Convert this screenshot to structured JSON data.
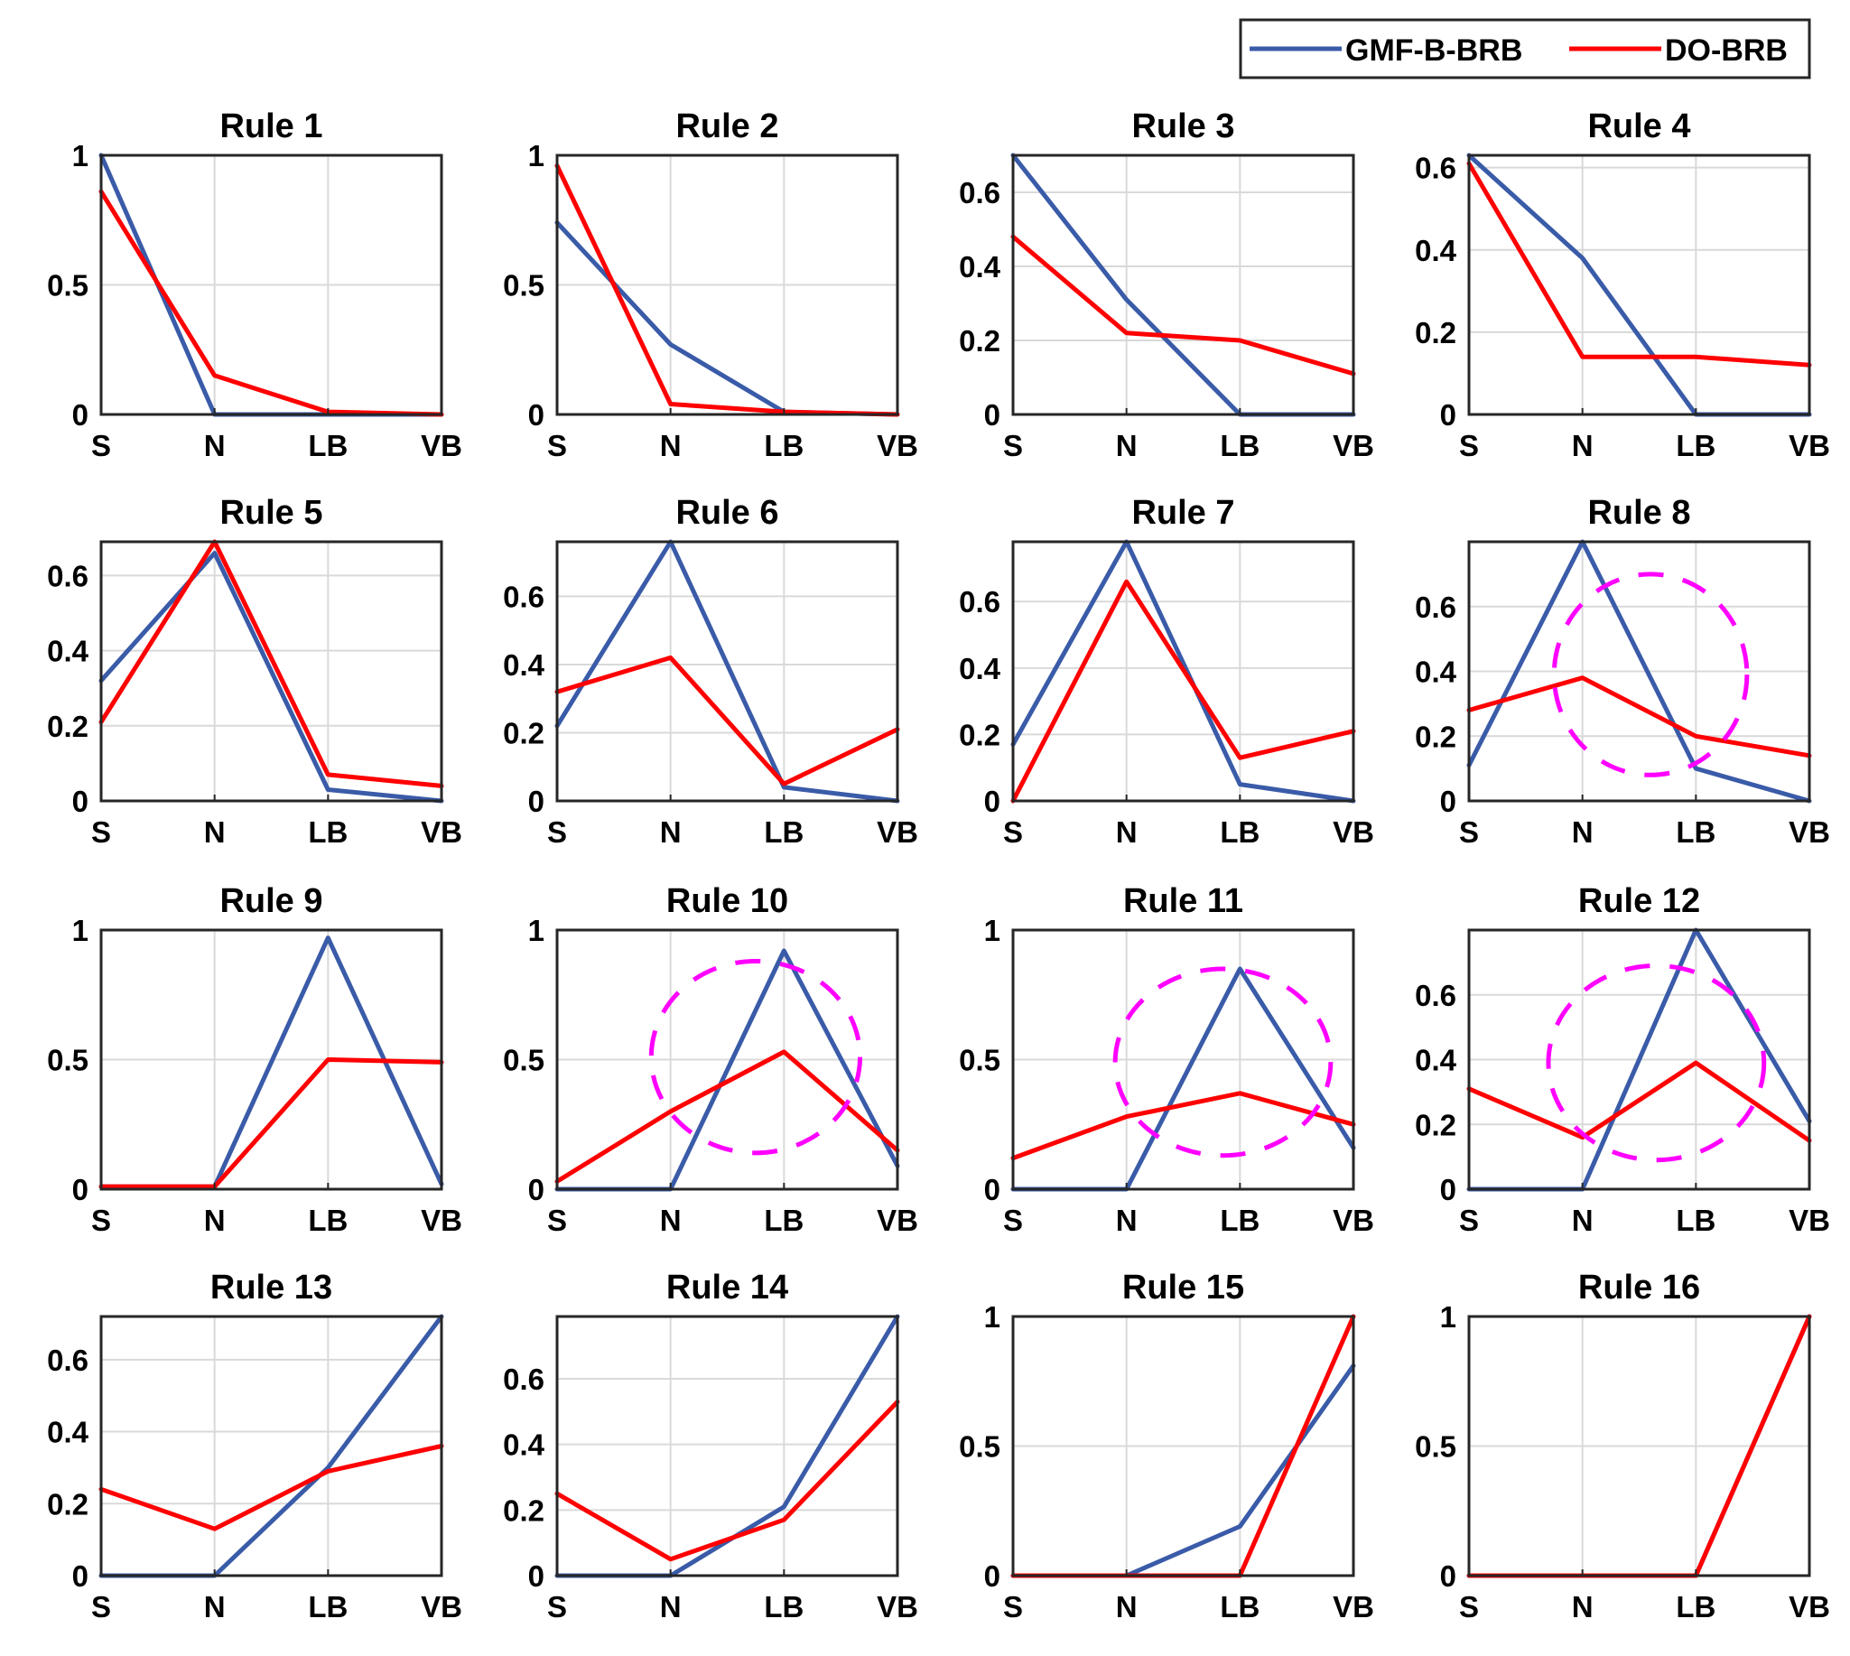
{
  "chart_data": {
    "type": "line",
    "categories": [
      "S",
      "N",
      "LB",
      "VB"
    ],
    "legend": {
      "placement": "top-right",
      "entries": [
        {
          "name": "GMF-B-BRB",
          "color": "#3a5ba8"
        },
        {
          "name": "DO-BRB",
          "color": "#ff0000"
        }
      ]
    },
    "highlight_color": "#ff00ff",
    "panels": [
      {
        "title": "Rule 1",
        "ylim": [
          0,
          1
        ],
        "yticks": [
          0,
          0.5,
          1
        ],
        "ytick_labels": [
          "0",
          "0.5",
          "1"
        ],
        "series": [
          {
            "name": "GMF-B-BRB",
            "values": [
              1.0,
              0.0,
              0.0,
              0.0
            ]
          },
          {
            "name": "DO-BRB",
            "values": [
              0.86,
              0.15,
              0.01,
              0.0
            ]
          }
        ]
      },
      {
        "title": "Rule 2",
        "ylim": [
          0,
          1
        ],
        "yticks": [
          0,
          0.5,
          1
        ],
        "ytick_labels": [
          "0",
          "0.5",
          "1"
        ],
        "series": [
          {
            "name": "GMF-B-BRB",
            "values": [
              0.74,
              0.27,
              0.01,
              0.0
            ]
          },
          {
            "name": "DO-BRB",
            "values": [
              0.96,
              0.04,
              0.01,
              0.0
            ]
          }
        ]
      },
      {
        "title": "Rule 3",
        "ylim": [
          0,
          0.7
        ],
        "yticks": [
          0,
          0.2,
          0.4,
          0.6
        ],
        "ytick_labels": [
          "0",
          "0.2",
          "0.4",
          "0.6"
        ],
        "series": [
          {
            "name": "GMF-B-BRB",
            "values": [
              0.7,
              0.31,
              0.0,
              0.0
            ]
          },
          {
            "name": "DO-BRB",
            "values": [
              0.48,
              0.22,
              0.2,
              0.11
            ]
          }
        ]
      },
      {
        "title": "Rule 4",
        "ylim": [
          0,
          0.63
        ],
        "yticks": [
          0,
          0.2,
          0.4,
          0.6
        ],
        "ytick_labels": [
          "0",
          "0.2",
          "0.4",
          "0.6"
        ],
        "series": [
          {
            "name": "GMF-B-BRB",
            "values": [
              0.63,
              0.38,
              0.0,
              0.0
            ]
          },
          {
            "name": "DO-BRB",
            "values": [
              0.61,
              0.14,
              0.14,
              0.12
            ]
          }
        ]
      },
      {
        "title": "Rule 5",
        "ylim": [
          0,
          0.69
        ],
        "yticks": [
          0,
          0.2,
          0.4,
          0.6
        ],
        "ytick_labels": [
          "0",
          "0.2",
          "0.4",
          "0.6"
        ],
        "series": [
          {
            "name": "GMF-B-BRB",
            "values": [
              0.32,
              0.66,
              0.03,
              0.0
            ]
          },
          {
            "name": "DO-BRB",
            "values": [
              0.21,
              0.69,
              0.07,
              0.04
            ]
          }
        ]
      },
      {
        "title": "Rule 6",
        "ylim": [
          0,
          0.76
        ],
        "yticks": [
          0,
          0.2,
          0.4,
          0.6
        ],
        "ytick_labels": [
          "0",
          "0.2",
          "0.4",
          "0.6"
        ],
        "series": [
          {
            "name": "GMF-B-BRB",
            "values": [
              0.22,
              0.76,
              0.04,
              0.0
            ]
          },
          {
            "name": "DO-BRB",
            "values": [
              0.32,
              0.42,
              0.05,
              0.21
            ]
          }
        ]
      },
      {
        "title": "Rule 7",
        "ylim": [
          0,
          0.78
        ],
        "yticks": [
          0,
          0.2,
          0.4,
          0.6
        ],
        "ytick_labels": [
          "0",
          "0.2",
          "0.4",
          "0.6"
        ],
        "series": [
          {
            "name": "GMF-B-BRB",
            "values": [
              0.17,
              0.78,
              0.05,
              0.0
            ]
          },
          {
            "name": "DO-BRB",
            "values": [
              0.0,
              0.66,
              0.13,
              0.21
            ]
          }
        ]
      },
      {
        "title": "Rule 8",
        "ylim": [
          0,
          0.8
        ],
        "yticks": [
          0,
          0.2,
          0.4,
          0.6
        ],
        "ytick_labels": [
          "0",
          "0.2",
          "0.4",
          "0.6"
        ],
        "highlight": {
          "cx": 1.6,
          "cy": 0.39,
          "rx": 0.85,
          "ry": 0.31
        },
        "series": [
          {
            "name": "GMF-B-BRB",
            "values": [
              0.11,
              0.8,
              0.1,
              0.0
            ]
          },
          {
            "name": "DO-BRB",
            "values": [
              0.28,
              0.38,
              0.2,
              0.14
            ]
          }
        ]
      },
      {
        "title": "Rule 9",
        "ylim": [
          0,
          1
        ],
        "yticks": [
          0,
          0.5,
          1
        ],
        "ytick_labels": [
          "0",
          "0.5",
          "1"
        ],
        "series": [
          {
            "name": "GMF-B-BRB",
            "values": [
              0.01,
              0.01,
              0.97,
              0.02
            ]
          },
          {
            "name": "DO-BRB",
            "values": [
              0.01,
              0.01,
              0.5,
              0.49
            ]
          }
        ]
      },
      {
        "title": "Rule 10",
        "ylim": [
          0,
          1
        ],
        "yticks": [
          0,
          0.5,
          1
        ],
        "ytick_labels": [
          "0",
          "0.5",
          "1"
        ],
        "highlight": {
          "cx": 1.75,
          "cy": 0.51,
          "rx": 0.92,
          "ry": 0.37
        },
        "series": [
          {
            "name": "GMF-B-BRB",
            "values": [
              0.0,
              0.0,
              0.92,
              0.09
            ]
          },
          {
            "name": "DO-BRB",
            "values": [
              0.03,
              0.3,
              0.53,
              0.15
            ]
          }
        ]
      },
      {
        "title": "Rule 11",
        "ylim": [
          0,
          1
        ],
        "yticks": [
          0,
          0.5,
          1
        ],
        "ytick_labels": [
          "0",
          "0.5",
          "1"
        ],
        "highlight": {
          "cx": 1.85,
          "cy": 0.49,
          "rx": 0.95,
          "ry": 0.36
        },
        "series": [
          {
            "name": "GMF-B-BRB",
            "values": [
              0.0,
              0.0,
              0.85,
              0.16
            ]
          },
          {
            "name": "DO-BRB",
            "values": [
              0.12,
              0.28,
              0.37,
              0.25
            ]
          }
        ]
      },
      {
        "title": "Rule 12",
        "ylim": [
          0,
          0.8
        ],
        "yticks": [
          0,
          0.2,
          0.4,
          0.6
        ],
        "ytick_labels": [
          "0",
          "0.2",
          "0.4",
          "0.6"
        ],
        "highlight": {
          "cx": 1.65,
          "cy": 0.39,
          "rx": 0.95,
          "ry": 0.3
        },
        "series": [
          {
            "name": "GMF-B-BRB",
            "values": [
              0.0,
              0.0,
              0.8,
              0.21
            ]
          },
          {
            "name": "DO-BRB",
            "values": [
              0.31,
              0.16,
              0.39,
              0.15
            ]
          }
        ]
      },
      {
        "title": "Rule 13",
        "ylim": [
          0,
          0.72
        ],
        "yticks": [
          0,
          0.2,
          0.4,
          0.6
        ],
        "ytick_labels": [
          "0",
          "0.2",
          "0.4",
          "0.6"
        ],
        "series": [
          {
            "name": "GMF-B-BRB",
            "values": [
              0.0,
              0.0,
              0.3,
              0.72
            ]
          },
          {
            "name": "DO-BRB",
            "values": [
              0.24,
              0.13,
              0.29,
              0.36
            ]
          }
        ]
      },
      {
        "title": "Rule 14",
        "ylim": [
          0,
          0.79
        ],
        "yticks": [
          0,
          0.2,
          0.4,
          0.6
        ],
        "ytick_labels": [
          "0",
          "0.2",
          "0.4",
          "0.6"
        ],
        "series": [
          {
            "name": "GMF-B-BRB",
            "values": [
              0.0,
              0.0,
              0.21,
              0.79
            ]
          },
          {
            "name": "DO-BRB",
            "values": [
              0.25,
              0.05,
              0.17,
              0.53
            ]
          }
        ]
      },
      {
        "title": "Rule 15",
        "ylim": [
          0,
          1
        ],
        "yticks": [
          0,
          0.5,
          1
        ],
        "ytick_labels": [
          "0",
          "0.5",
          "1"
        ],
        "series": [
          {
            "name": "GMF-B-BRB",
            "values": [
              0.0,
              0.0,
              0.19,
              0.81
            ]
          },
          {
            "name": "DO-BRB",
            "values": [
              0.0,
              0.0,
              0.0,
              1.0
            ]
          }
        ]
      },
      {
        "title": "Rule 16",
        "ylim": [
          0,
          1
        ],
        "yticks": [
          0,
          0.5,
          1
        ],
        "ytick_labels": [
          "0",
          "0.5",
          "1"
        ],
        "series": [
          {
            "name": "GMF-B-BRB",
            "values": [
              0.0,
              0.0,
              0.0,
              1.0
            ]
          },
          {
            "name": "DO-BRB",
            "values": [
              0.0,
              0.0,
              0.0,
              1.0
            ]
          }
        ]
      }
    ]
  }
}
